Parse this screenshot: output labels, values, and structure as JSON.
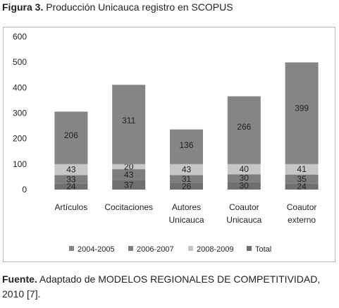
{
  "caption": {
    "label": "Figura 3.",
    "text": " Producción Unicauca registro en SCOPUS"
  },
  "source": {
    "label": "Fuente.",
    "text": " Adaptado de MODELOS REGIONALES DE COMPETITIVIDAD, 2010 [7]."
  },
  "chart_data": {
    "type": "bar",
    "stacked": true,
    "categories": [
      [
        "Artículos"
      ],
      [
        "Cocitaciones"
      ],
      [
        "Autores",
        "Unicauca"
      ],
      [
        "Coautor",
        "Unicauca"
      ],
      [
        "Coautor",
        "externo"
      ]
    ],
    "series": [
      {
        "name": "Total",
        "color": "#6f6f6f",
        "values": [
          24,
          37,
          26,
          30,
          24
        ]
      },
      {
        "name": "2006-2007",
        "color": "#7e7e7e",
        "values": [
          33,
          43,
          31,
          30,
          35
        ]
      },
      {
        "name": "2008-2009",
        "color": "#c6c6c6",
        "values": [
          43,
          20,
          43,
          40,
          41
        ]
      },
      {
        "name": "2004-2005",
        "color": "#858585",
        "values": [
          206,
          311,
          136,
          266,
          399
        ]
      }
    ],
    "legend_order": [
      "2004-2005",
      "2006-2007",
      "2008-2009",
      "Total"
    ],
    "legend_colors": {
      "2004-2005": "#858585",
      "2006-2007": "#7e7e7e",
      "2008-2009": "#c6c6c6",
      "Total": "#6f6f6f"
    },
    "legend_position": "bottom",
    "yticks": [
      0,
      100,
      200,
      300,
      400,
      500,
      600
    ],
    "ylim": [
      0,
      600
    ],
    "grid": false,
    "title": "",
    "xlabel": "",
    "ylabel": ""
  }
}
